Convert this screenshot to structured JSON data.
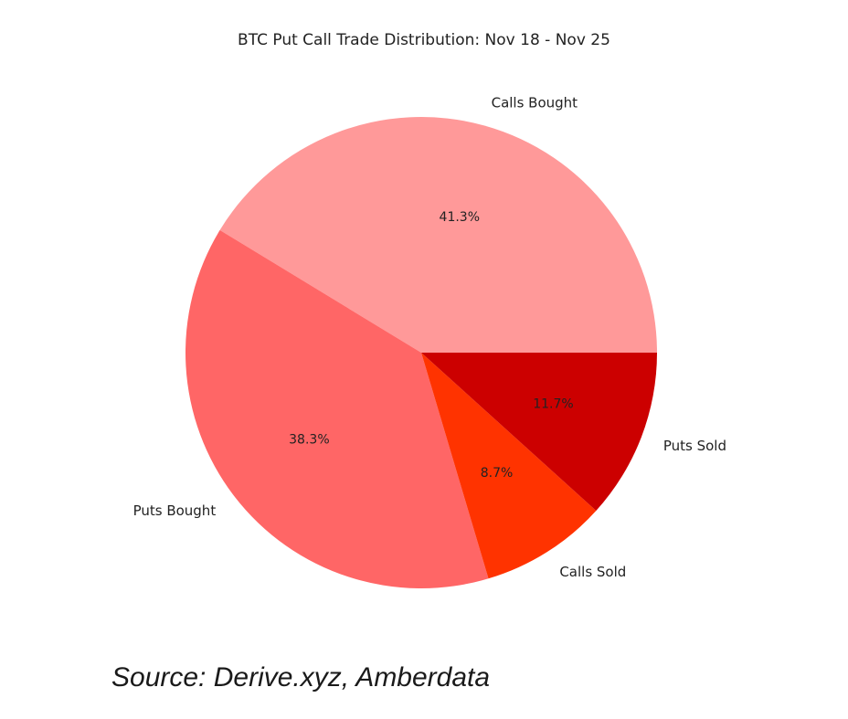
{
  "chart_data": {
    "type": "pie",
    "title": "BTC Put Call Trade Distribution: Nov 18 - Nov 25",
    "categories": [
      "Calls Bought",
      "Puts Bought",
      "Calls Sold",
      "Puts Sold"
    ],
    "values": [
      41.3,
      38.3,
      8.7,
      11.7
    ],
    "value_labels": [
      "41.3%",
      "38.3%",
      "8.7%",
      "11.7%"
    ],
    "colors": [
      "#ff9999",
      "#ff6666",
      "#ff3300",
      "#cc0000"
    ],
    "start_angle_deg": 0,
    "direction": "counterclockwise"
  },
  "source": "Source: Derive.xyz, Amberdata"
}
